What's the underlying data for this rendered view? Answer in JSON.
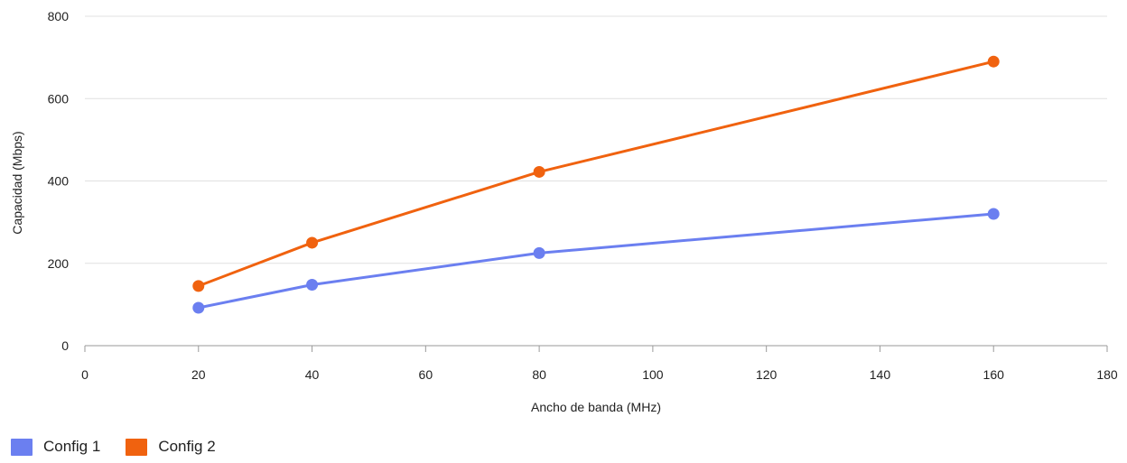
{
  "chart_data": {
    "type": "line",
    "xlabel": "Ancho de banda (MHz)",
    "ylabel": "Capacidad (Mbps)",
    "xlim": [
      0,
      180
    ],
    "ylim": [
      0,
      800
    ],
    "xticks": [
      0,
      20,
      40,
      60,
      80,
      100,
      120,
      140,
      160,
      180
    ],
    "yticks": [
      0,
      200,
      400,
      600,
      800
    ],
    "grid": "horizontal",
    "legend_position": "bottom-left",
    "series": [
      {
        "name": "Config 1",
        "color": "#6b7ff0",
        "x": [
          20,
          40,
          80,
          160
        ],
        "y": [
          92,
          148,
          225,
          320
        ]
      },
      {
        "name": "Config 2",
        "color": "#f0620f",
        "x": [
          20,
          40,
          80,
          160
        ],
        "y": [
          145,
          250,
          422,
          690
        ]
      }
    ]
  }
}
